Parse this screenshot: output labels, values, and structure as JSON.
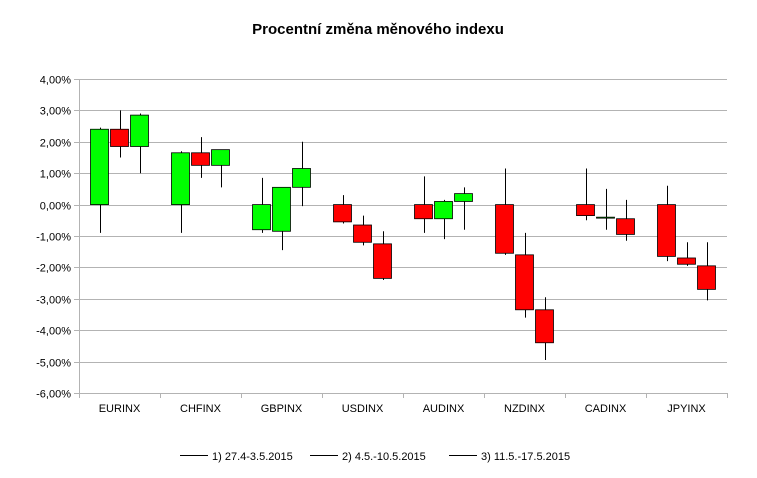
{
  "chart_data": {
    "type": "candlestick",
    "title": "Procentní změna měnového indexu",
    "xlabel": "",
    "ylabel": "",
    "ylim": [
      -6,
      4
    ],
    "y_tick_labels": [
      "4,00%",
      "3,00%",
      "2,00%",
      "1,00%",
      "0,00%",
      "-1,00%",
      "-2,00%",
      "-3,00%",
      "-4,00%",
      "-5,00%",
      "-6,00%"
    ],
    "y_tick_values": [
      4,
      3,
      2,
      1,
      0,
      -1,
      -2,
      -3,
      -4,
      -5,
      -6
    ],
    "grid": true,
    "legend_position": "bottom",
    "categories": [
      "EURINX",
      "CHFINX",
      "GBPINX",
      "USDINX",
      "AUDINX",
      "NZDINX",
      "CADINX",
      "JPYINX"
    ],
    "up_color": "#00ff00",
    "down_color": "#ff0000",
    "series": [
      {
        "name": "1) 27.4-3.5.2015",
        "ohlc": [
          {
            "open": 0.0,
            "high": 2.45,
            "low": -0.9,
            "close": 2.4
          },
          {
            "open": 0.0,
            "high": 1.7,
            "low": -0.9,
            "close": 1.65
          },
          {
            "open": -0.8,
            "high": 0.85,
            "low": -0.9,
            "close": 0.0
          },
          {
            "open": 0.0,
            "high": 0.3,
            "low": -0.6,
            "close": -0.55
          },
          {
            "open": 0.0,
            "high": 0.9,
            "low": -0.9,
            "close": -0.45
          },
          {
            "open": 0.0,
            "high": 1.15,
            "low": -1.6,
            "close": -1.55
          },
          {
            "open": 0.0,
            "high": 1.15,
            "low": -0.5,
            "close": -0.35
          },
          {
            "open": 0.0,
            "high": 0.6,
            "low": -1.8,
            "close": -1.65
          }
        ]
      },
      {
        "name": "2) 4.5.-10.5.2015",
        "ohlc": [
          {
            "open": 2.4,
            "high": 3.0,
            "low": 1.5,
            "close": 1.85
          },
          {
            "open": 1.65,
            "high": 2.15,
            "low": 0.85,
            "close": 1.25
          },
          {
            "open": -0.85,
            "high": 0.55,
            "low": -1.45,
            "close": 0.55
          },
          {
            "open": -0.65,
            "high": -0.35,
            "low": -1.3,
            "close": -1.2
          },
          {
            "open": -0.45,
            "high": 0.15,
            "low": -1.1,
            "close": 0.1
          },
          {
            "open": -1.6,
            "high": -0.9,
            "low": -3.6,
            "close": -3.35
          },
          {
            "open": -0.4,
            "high": 0.5,
            "low": -0.8,
            "close": -0.4
          },
          {
            "open": -1.7,
            "high": -1.2,
            "low": -1.95,
            "close": -1.9
          }
        ]
      },
      {
        "name": "3) 11.5.-17.5.2015",
        "ohlc": [
          {
            "open": 1.85,
            "high": 2.9,
            "low": 1.0,
            "close": 2.85
          },
          {
            "open": 1.25,
            "high": 1.75,
            "low": 0.55,
            "close": 1.75
          },
          {
            "open": 0.55,
            "high": 2.0,
            "low": -0.05,
            "close": 1.15
          },
          {
            "open": -1.25,
            "high": -0.85,
            "low": -2.4,
            "close": -2.35
          },
          {
            "open": 0.1,
            "high": 0.55,
            "low": -0.8,
            "close": 0.35
          },
          {
            "open": -3.35,
            "high": -2.95,
            "low": -4.95,
            "close": -4.4
          },
          {
            "open": -0.45,
            "high": 0.15,
            "low": -1.15,
            "close": -0.95
          },
          {
            "open": -1.95,
            "high": -1.2,
            "low": -3.05,
            "close": -2.7
          }
        ]
      }
    ]
  }
}
